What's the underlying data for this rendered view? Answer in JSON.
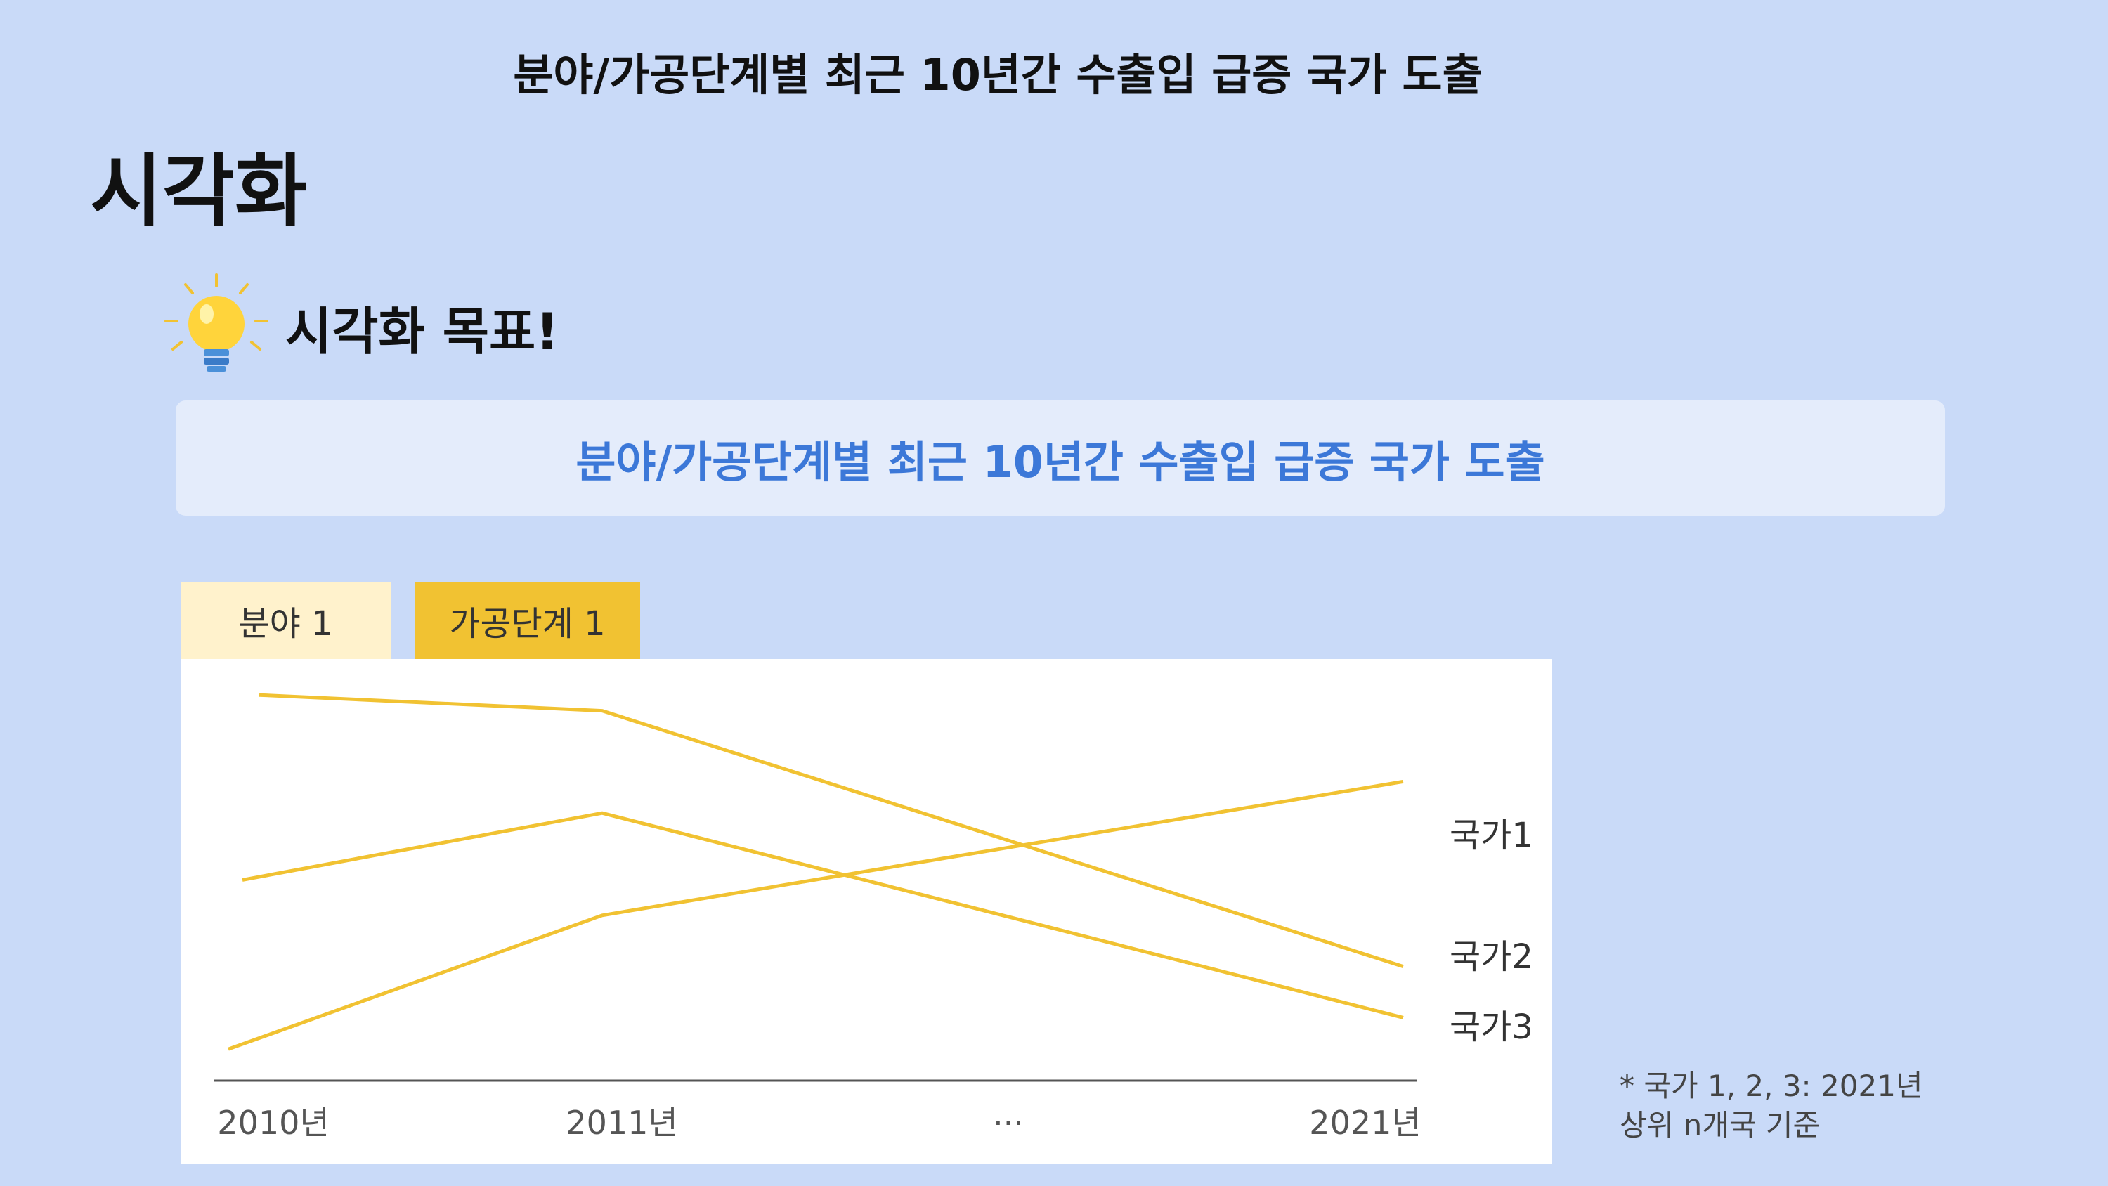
{
  "header": {
    "top_title": "분야/가공단계별 최근 10년간 수출입 급증 국가 도출",
    "heading": "시각화"
  },
  "goal": {
    "label": "시각화 목표!",
    "text": "분야/가공단계별 최근 10년간 수출입 급증 국가 도출",
    "icon": "lightbulb-icon"
  },
  "tabs": [
    {
      "label": "분야 1",
      "color": "#fff2cc"
    },
    {
      "label": "가공단계 1",
      "color": "#f1c232"
    }
  ],
  "chart_data": {
    "type": "line",
    "categories": [
      "2010년",
      "2011년",
      "···",
      "2021년"
    ],
    "series": [
      {
        "name": "국가1",
        "values": [
          8,
          42,
          null,
          76
        ]
      },
      {
        "name": "국가2",
        "values": [
          98,
          94,
          null,
          29
        ]
      },
      {
        "name": "국가3",
        "values": [
          51,
          68,
          null,
          16
        ]
      }
    ],
    "ylim": [
      0,
      100
    ],
    "line_color": "#f1c232",
    "axis_color": "#555555",
    "grid": false,
    "legend": "line-end labels"
  },
  "footnote": {
    "line1": "* 국가 1, 2, 3: 2021년",
    "line2": "상위 n개국 기준"
  }
}
